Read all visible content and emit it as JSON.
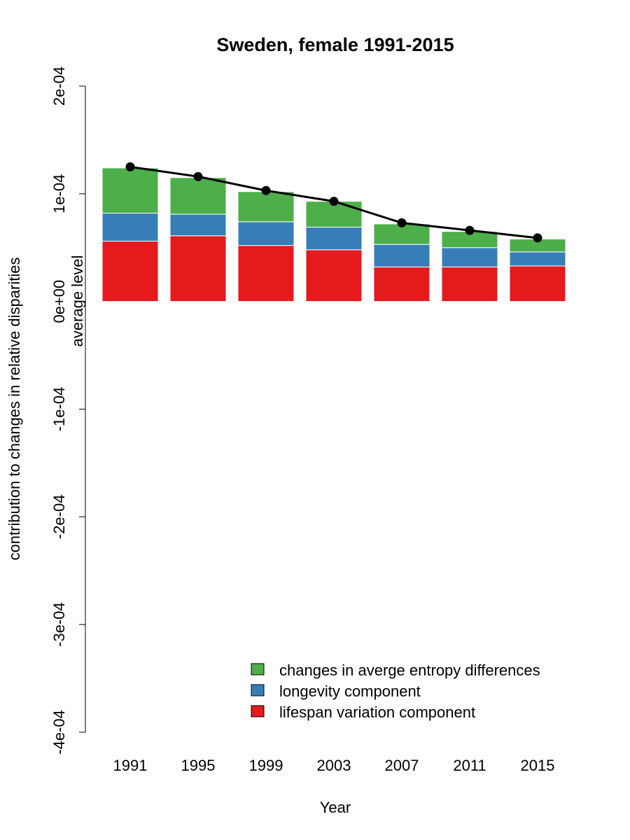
{
  "chart_data": {
    "type": "bar",
    "stacked": true,
    "title": "Sweden, female 1991-2015",
    "xlabel": "Year",
    "ylabel": "contribution to changes in relative disparities",
    "secondary_ylabel": "average level",
    "categories": [
      "1991",
      "1995",
      "1999",
      "2003",
      "2007",
      "2011",
      "2015"
    ],
    "ylim": [
      -0.0004,
      0.0002
    ],
    "yticks": [
      -0.0004,
      -0.0003,
      -0.0002,
      -0.0001,
      0,
      0.0001,
      0.0002
    ],
    "ytick_labels": [
      "-4e-04",
      "-3e-04",
      "-2e-04",
      "-1e-04",
      "0e+00",
      "1e-04",
      "2e-04"
    ],
    "series": [
      {
        "name": "lifespan variation component",
        "color": "#E41A1C",
        "values": [
          5.6e-05,
          6.1e-05,
          5.2e-05,
          4.8e-05,
          3.2e-05,
          3.2e-05,
          3.3e-05
        ]
      },
      {
        "name": "longevity component",
        "color": "#377EB8",
        "values": [
          2.6e-05,
          2e-05,
          2.2e-05,
          2.1e-05,
          2.1e-05,
          1.8e-05,
          1.3e-05
        ]
      },
      {
        "name": "changes in averge entropy differences",
        "color": "#4DAF4A",
        "values": [
          4.2e-05,
          3.4e-05,
          2.8e-05,
          2.4e-05,
          1.9e-05,
          1.5e-05,
          1.2e-05
        ]
      }
    ],
    "line": {
      "name": "average level",
      "color": "#000000",
      "values": [
        0.000125,
        0.000116,
        0.000103,
        9.3e-05,
        7.3e-05,
        6.6e-05,
        5.9e-05
      ]
    },
    "legend": {
      "position": "bottom-right",
      "order": [
        "changes in averge entropy differences",
        "longevity component",
        "lifespan variation component"
      ]
    },
    "grid": false
  }
}
